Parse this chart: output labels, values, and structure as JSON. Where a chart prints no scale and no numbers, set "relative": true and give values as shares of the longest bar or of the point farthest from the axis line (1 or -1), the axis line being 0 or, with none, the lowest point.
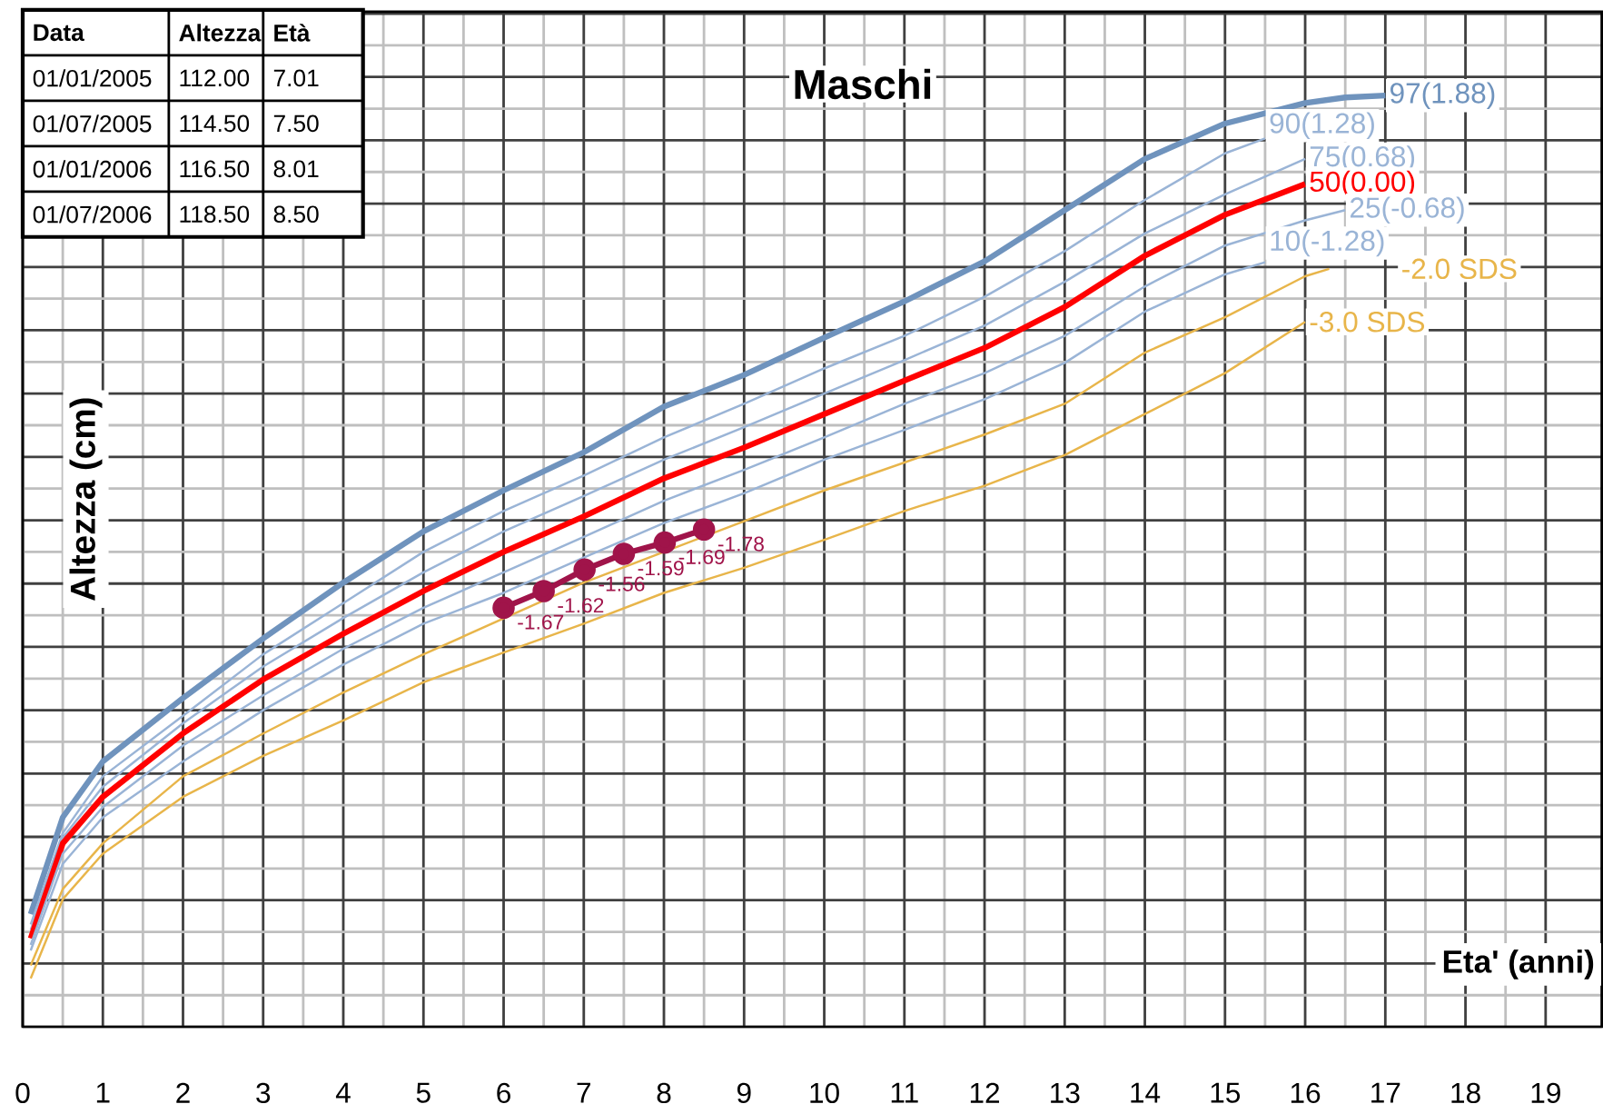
{
  "chart_data": {
    "type": "line",
    "title": "Maschi",
    "xlabel": "Eta' (anni)",
    "ylabel": "Altezza (cm)",
    "relative": true,
    "grid": true,
    "tick_labels": "x",
    "xlim": [
      0,
      19.7
    ],
    "xticks": [
      0,
      1,
      2,
      3,
      4,
      5,
      6,
      7,
      8,
      9,
      10,
      11,
      12,
      13,
      14,
      15,
      16,
      17,
      18,
      19
    ],
    "annotations": [
      "Data",
      "Altezza",
      "Età",
      "01/01/2005",
      "112.00",
      "7.01",
      "01/07/2005",
      "114.50",
      "7.50",
      "01/01/2006",
      "116.50",
      "8.01",
      "01/07/2006",
      "118.50",
      "8.50",
      {
        "text": "-1.67",
        "x": 6,
        "y": 0.45
      },
      {
        "text": "-1.62",
        "x": 6.5,
        "y": 0.468
      },
      {
        "text": "-1.56",
        "x": 7.01,
        "y": 0.491
      },
      {
        "text": "-1.59",
        "x": 7.5,
        "y": 0.508
      },
      {
        "text": "-1.69",
        "x": 8.01,
        "y": 0.52
      },
      {
        "text": "-1.78",
        "x": 8.5,
        "y": 0.534
      }
    ],
    "series": [
      {
        "name": "97(1.88)",
        "color": "#6f93bd",
        "x": [
          0.1,
          0.5,
          1,
          2,
          3,
          4,
          5,
          6,
          7,
          8,
          9,
          10,
          11,
          12,
          13,
          14,
          15,
          16,
          16.5,
          17
        ],
        "values": [
          0.121,
          0.225,
          0.285,
          0.353,
          0.417,
          0.477,
          0.532,
          0.576,
          0.617,
          0.666,
          0.7,
          0.74,
          0.779,
          0.822,
          0.877,
          0.932,
          0.97,
          0.992,
          0.998,
          1
        ]
      },
      {
        "name": "90(1.28)",
        "color": "#9ab4d6",
        "x": [
          0.1,
          0.5,
          1,
          2,
          3,
          4,
          5,
          6,
          7,
          8,
          9,
          10,
          11,
          12,
          13,
          14,
          15,
          15.5
        ],
        "values": [
          0.11,
          0.208,
          0.269,
          0.334,
          0.4,
          0.455,
          0.51,
          0.554,
          0.592,
          0.633,
          0.669,
          0.707,
          0.742,
          0.784,
          0.833,
          0.888,
          0.938,
          0.954
        ]
      },
      {
        "name": "75(0.68)",
        "color": "#9ab4d6",
        "x": [
          0.1,
          0.5,
          1,
          2,
          3,
          4,
          5,
          6,
          7,
          8,
          9,
          10,
          11,
          12,
          13,
          14,
          15,
          16
        ],
        "values": [
          0.104,
          0.203,
          0.258,
          0.326,
          0.387,
          0.439,
          0.488,
          0.532,
          0.57,
          0.609,
          0.644,
          0.68,
          0.716,
          0.753,
          0.8,
          0.852,
          0.894,
          0.932
        ]
      },
      {
        "name": "50(0.00)",
        "color": "#ff0000",
        "x": [
          0.1,
          0.5,
          1,
          2,
          3,
          4,
          5,
          6,
          7,
          8,
          9,
          10,
          11,
          12,
          13,
          14,
          15,
          16
        ],
        "values": [
          0.095,
          0.197,
          0.247,
          0.315,
          0.373,
          0.422,
          0.468,
          0.51,
          0.548,
          0.589,
          0.622,
          0.658,
          0.694,
          0.729,
          0.773,
          0.828,
          0.872,
          0.905
        ]
      },
      {
        "name": "25(-0.68)",
        "color": "#9ab4d6",
        "x": [
          0.1,
          0.5,
          1,
          2,
          3,
          4,
          5,
          6,
          7,
          8,
          9,
          10,
          11,
          12,
          13,
          14,
          15,
          16,
          16.5
        ],
        "values": [
          0.088,
          0.186,
          0.236,
          0.302,
          0.356,
          0.406,
          0.45,
          0.488,
          0.526,
          0.565,
          0.598,
          0.633,
          0.669,
          0.702,
          0.742,
          0.795,
          0.839,
          0.866,
          0.877
        ]
      },
      {
        "name": "10(-1.28)",
        "color": "#9ab4d6",
        "x": [
          0.1,
          0.5,
          1,
          2,
          3,
          4,
          5,
          6,
          7,
          8,
          9,
          10,
          11,
          12,
          13,
          14,
          15,
          15.5
        ],
        "values": [
          0.082,
          0.175,
          0.225,
          0.285,
          0.34,
          0.389,
          0.433,
          0.466,
          0.504,
          0.541,
          0.573,
          0.609,
          0.641,
          0.674,
          0.713,
          0.768,
          0.808,
          0.821
        ]
      },
      {
        "name": "-2.0 SDS",
        "color": "#e8b54a",
        "x": [
          0.1,
          0.5,
          1,
          2,
          3,
          4,
          5,
          7,
          8,
          9,
          10,
          11,
          12,
          13,
          14,
          15,
          16,
          16.3
        ],
        "values": [
          0.066,
          0.148,
          0.197,
          0.269,
          0.315,
          0.359,
          0.4,
          0.477,
          0.51,
          0.543,
          0.576,
          0.606,
          0.636,
          0.669,
          0.724,
          0.762,
          0.806,
          0.814
        ]
      },
      {
        "name": "-3.0 SDS",
        "color": "#e8b54a",
        "x": [
          0.1,
          0.5,
          1,
          2,
          3,
          4,
          5,
          6,
          7,
          8,
          9,
          10,
          11,
          12,
          13,
          14,
          15,
          16
        ],
        "values": [
          0.052,
          0.137,
          0.186,
          0.247,
          0.291,
          0.329,
          0.37,
          0.402,
          0.433,
          0.466,
          0.493,
          0.523,
          0.554,
          0.581,
          0.614,
          0.658,
          0.702,
          0.757
        ]
      },
      {
        "color": "#a0144a",
        "marker": "circle",
        "x": [
          6,
          6.5,
          7.01,
          7.5,
          8.01,
          8.5
        ],
        "values": [
          0.45,
          0.468,
          0.491,
          0.508,
          0.52,
          0.534
        ]
      }
    ]
  }
}
